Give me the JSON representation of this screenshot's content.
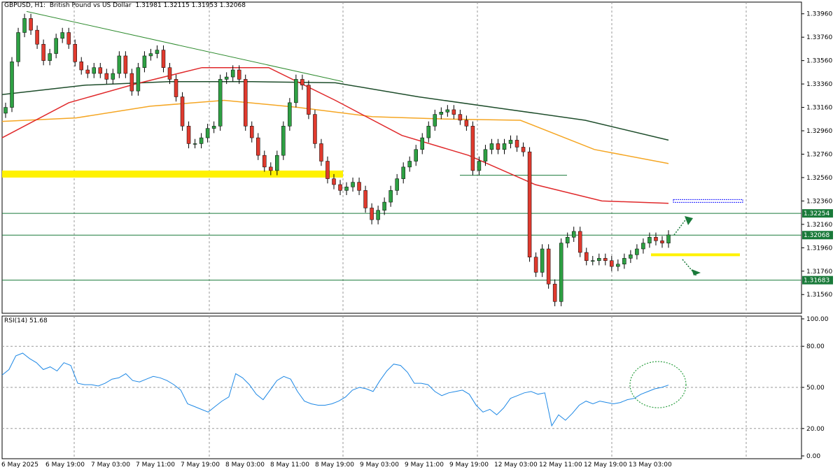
{
  "header": {
    "symbol": "GBPUSD",
    "timeframe": "H1",
    "description": "British Pound vs US Dollar",
    "ohlc": "1.31981 1.32115 1.31953 1.32068"
  },
  "colors": {
    "bull": "#2ea043",
    "bear": "#e03a2e",
    "ma_fast": "#e0292b",
    "ma_mid": "#f5a623",
    "ma_slow": "#1e4d2b",
    "trendline": "#2e8b2e",
    "level": "#1a7a3a",
    "zone": "#fff200",
    "rsi": "#1e88e5",
    "grid": "#9a9a9a"
  },
  "chart_data": [
    {
      "type": "candlestick",
      "title": "GBPUSD, H1: British Pound vs US Dollar",
      "ylim": [
        1.314,
        1.3406
      ],
      "y_ticks": [
        "1.33960",
        "1.33760",
        "1.33560",
        "1.33360",
        "1.33160",
        "1.32960",
        "1.32760",
        "1.32560",
        "1.32360",
        "1.32160",
        "1.31960",
        "1.31760",
        "1.31560"
      ],
      "x_ticks": [
        "6 May 2025",
        "6 May 19:00",
        "7 May 03:00",
        "7 May 11:00",
        "7 May 19:00",
        "8 May 03:00",
        "8 May 11:00",
        "8 May 19:00",
        "9 May 03:00",
        "9 May 11:00",
        "9 May 19:00",
        "12 May 03:00",
        "12 May 11:00",
        "12 May 19:00",
        "13 May 03:00"
      ],
      "closes": [
        1.3316,
        1.3355,
        1.338,
        1.3392,
        1.3382,
        1.337,
        1.3356,
        1.3362,
        1.3375,
        1.338,
        1.337,
        1.3355,
        1.3348,
        1.3345,
        1.335,
        1.3345,
        1.334,
        1.3345,
        1.336,
        1.3345,
        1.333,
        1.335,
        1.336,
        1.3362,
        1.3365,
        1.335,
        1.334,
        1.3325,
        1.33,
        1.3285,
        1.3285,
        1.329,
        1.3298,
        1.33,
        1.334,
        1.3342,
        1.3348,
        1.334,
        1.33,
        1.329,
        1.3275,
        1.3265,
        1.3262,
        1.3275,
        1.33,
        1.332,
        1.334,
        1.3335,
        1.331,
        1.3285,
        1.327,
        1.3255,
        1.325,
        1.3245,
        1.3248,
        1.3252,
        1.3245,
        1.323,
        1.322,
        1.3228,
        1.3235,
        1.3245,
        1.3255,
        1.3265,
        1.327,
        1.328,
        1.329,
        1.33,
        1.331,
        1.3312,
        1.3314,
        1.331,
        1.3305,
        1.33,
        1.3262,
        1.327,
        1.328,
        1.3285,
        1.328,
        1.3285,
        1.3288,
        1.3282,
        1.3278,
        1.3188,
        1.3175,
        1.3195,
        1.3165,
        1.315,
        1.32,
        1.3205,
        1.321,
        1.3192,
        1.3185,
        1.3185,
        1.3187,
        1.3185,
        1.318,
        1.3182,
        1.3187,
        1.319,
        1.3195,
        1.32,
        1.3205,
        1.3202,
        1.32,
        1.3207
      ],
      "ma_fast": [
        1.329,
        1.332,
        1.3336,
        1.335,
        1.335,
        1.3322,
        1.3292,
        1.3275,
        1.325,
        1.3236,
        1.3234
      ],
      "ma_mid": [
        1.3304,
        1.3307,
        1.3317,
        1.3322,
        1.3316,
        1.3308,
        1.3306,
        1.3305,
        1.328,
        1.3268
      ],
      "ma_slow": [
        1.3327,
        1.3335,
        1.3338,
        1.3338,
        1.3337,
        1.3325,
        1.3315,
        1.3305,
        1.3288
      ],
      "levels": [
        "1.32254",
        "1.32068",
        "1.31683"
      ],
      "support_zone": [
        1.3256,
        1.3262
      ],
      "small_zone": 1.319
    },
    {
      "type": "line",
      "title": "RSI(14) 51.68",
      "ylim": [
        0,
        100
      ],
      "y_ticks": [
        "100.00",
        "80.00",
        "50.00",
        "20.00",
        "0.00"
      ],
      "values": [
        59,
        63,
        73,
        75,
        71,
        68,
        63,
        65,
        62,
        68,
        66,
        53,
        52,
        52,
        51,
        53,
        56,
        57,
        60,
        55,
        54,
        56,
        58,
        57,
        55,
        52,
        48,
        38,
        36,
        34,
        32,
        36,
        40,
        43,
        60,
        57,
        52,
        45,
        41,
        48,
        55,
        58,
        56,
        47,
        40,
        38,
        37,
        37,
        38,
        40,
        43,
        48,
        50,
        49,
        47,
        55,
        62,
        67,
        66,
        61,
        53,
        53,
        52,
        47,
        44,
        46,
        47,
        48,
        45,
        37,
        32,
        34,
        30,
        35,
        42,
        44,
        46,
        47,
        45,
        46,
        22,
        30,
        26,
        31,
        37,
        40,
        38,
        40,
        39,
        38,
        39,
        41,
        42,
        45,
        47,
        49,
        50,
        51.68
      ]
    }
  ]
}
